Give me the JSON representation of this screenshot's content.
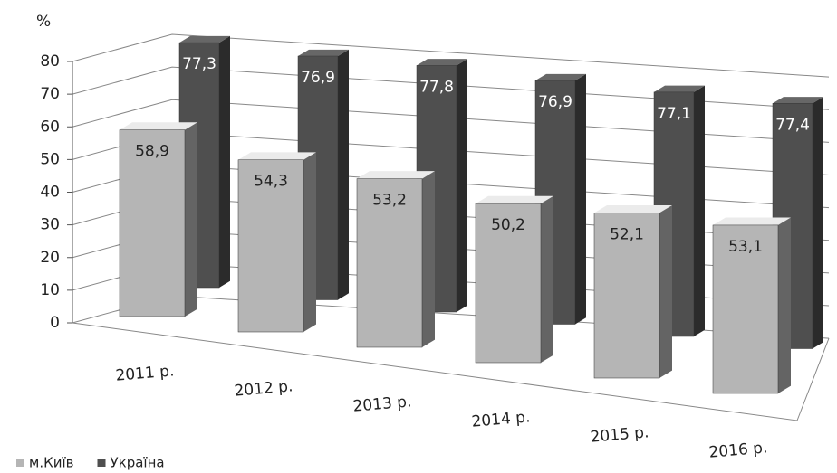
{
  "chart_data": {
    "type": "bar3d",
    "y_axis_label": "%",
    "categories": [
      "2011 р.",
      "2012 р.",
      "2013 р.",
      "2014 р.",
      "2015 р.",
      "2016 р."
    ],
    "series": [
      {
        "name": "м.Київ",
        "color": "#b5b5b5",
        "values": [
          58.9,
          54.3,
          53.2,
          50.2,
          52.1,
          53.1
        ],
        "value_labels": [
          "58,9",
          "54,3",
          "53,2",
          "50,2",
          "52,1",
          "53,1"
        ]
      },
      {
        "name": "Україна",
        "color": "#4f4f4f",
        "values": [
          77.3,
          76.9,
          77.8,
          76.9,
          77.1,
          77.4
        ],
        "value_labels": [
          "77,3",
          "76,9",
          "77,8",
          "76,9",
          "77,1",
          "77,4"
        ]
      }
    ],
    "ylim": [
      0,
      80
    ],
    "yticks": [
      0,
      10,
      20,
      30,
      40,
      50,
      60,
      70,
      80
    ],
    "grid": true,
    "legend": "bottom-left"
  }
}
